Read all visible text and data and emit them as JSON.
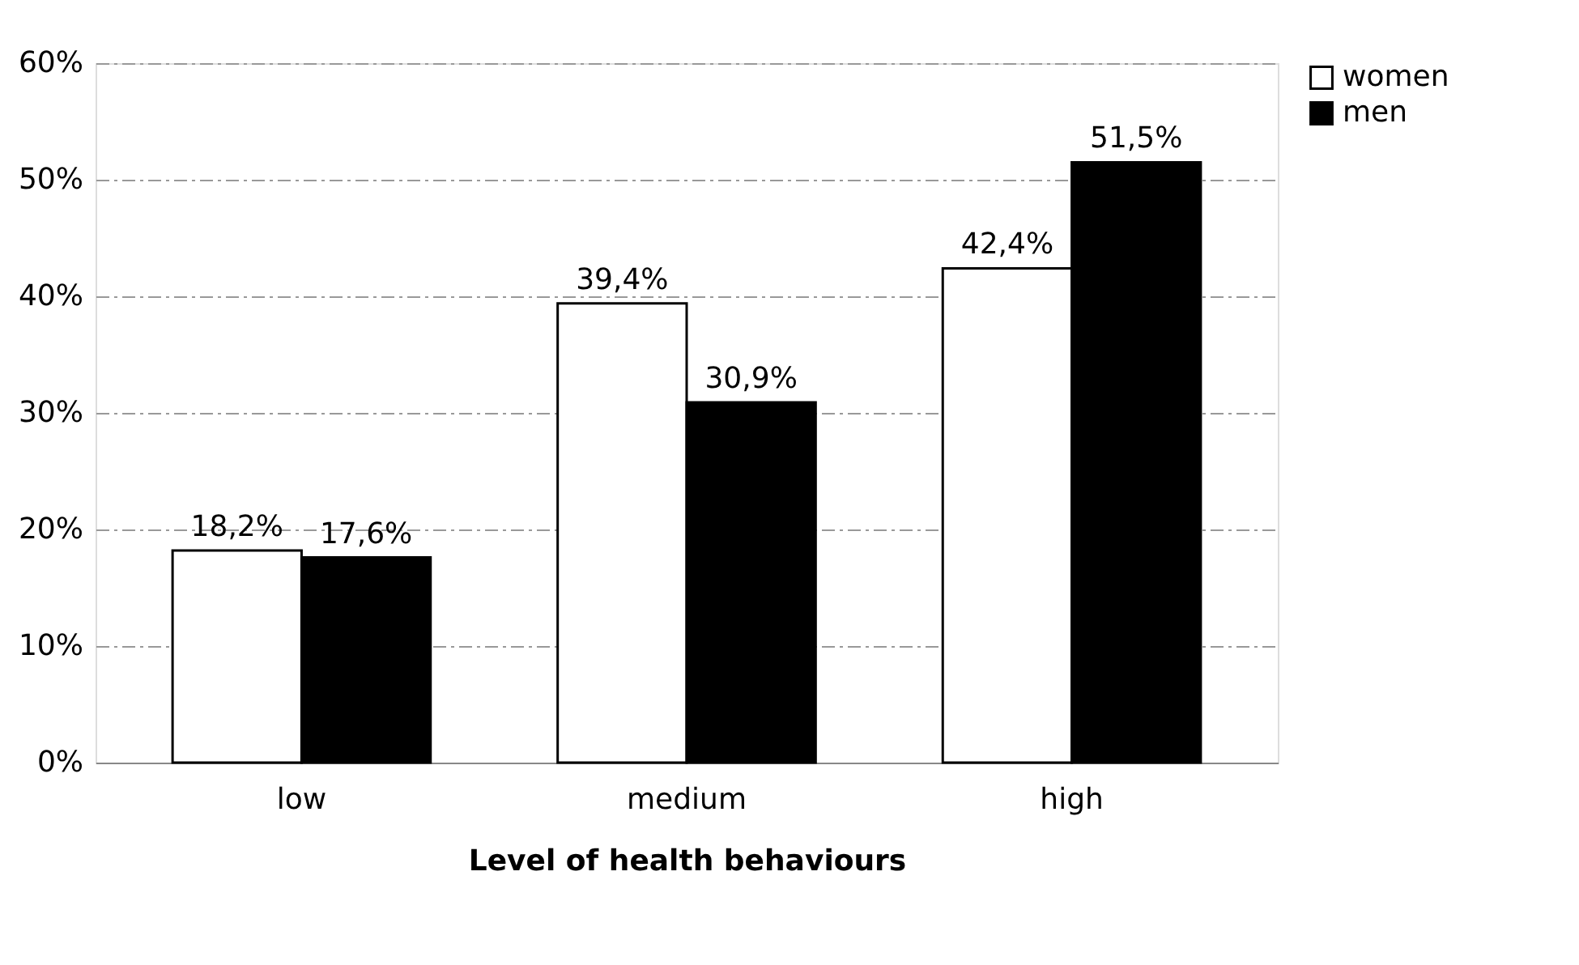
{
  "chart_data": {
    "type": "bar",
    "xlabel": "Level of health behaviours",
    "categories": [
      "low",
      "medium",
      "high"
    ],
    "series": [
      {
        "name": "women",
        "color": "#ffffff",
        "values": [
          18.2,
          39.4,
          42.4
        ],
        "value_labels": [
          "18,2%",
          "39,4%",
          "42,4%"
        ]
      },
      {
        "name": "men",
        "color": "#000000",
        "values": [
          17.6,
          30.9,
          51.5
        ],
        "value_labels": [
          "17,6%",
          "30,9%",
          "51,5%"
        ]
      }
    ],
    "ylim": [
      0,
      60
    ],
    "yticks": [
      {
        "value": 0,
        "label": "0%"
      },
      {
        "value": 10,
        "label": "10%"
      },
      {
        "value": 20,
        "label": "20%"
      },
      {
        "value": 30,
        "label": "30%"
      },
      {
        "value": 40,
        "label": "40%"
      },
      {
        "value": 50,
        "label": "50%"
      },
      {
        "value": 60,
        "label": "60%"
      }
    ],
    "grid": "y",
    "legend": "right"
  }
}
